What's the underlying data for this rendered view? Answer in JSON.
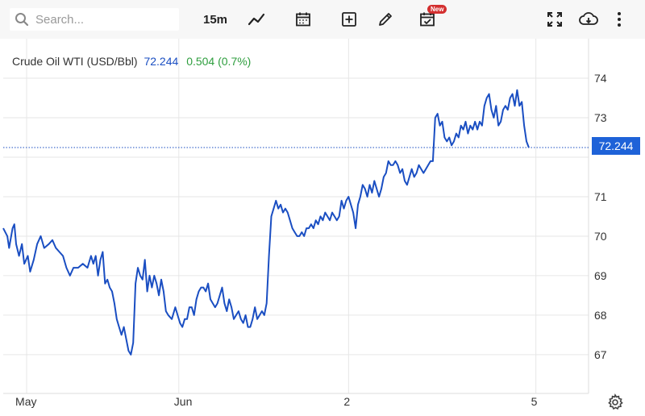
{
  "toolbar": {
    "search_placeholder": "Search...",
    "interval": "15m",
    "new_badge": "New",
    "icons": [
      "search-icon",
      "line-chart-icon",
      "calendar-icon",
      "add-icon",
      "pencil-icon",
      "calendar-check-icon",
      "fullscreen-icon",
      "download-icon",
      "more-icon"
    ]
  },
  "legend": {
    "name": "Crude Oil WTI (USD/Bbl)",
    "price": "72.244",
    "change": "0.504 (0.7%)"
  },
  "colors": {
    "line": "#1a4ec2",
    "up": "#2e9e3e",
    "price_tag": "#1e62d8"
  },
  "chart_data": {
    "type": "line",
    "title": "Crude Oil WTI (USD/Bbl)",
    "last_value": 72.244,
    "y_ticks": [
      67,
      68,
      69,
      70,
      71,
      72,
      73,
      74
    ],
    "y_tick_labels": [
      "67",
      "68",
      "69",
      "70",
      "71",
      "72.244",
      "73",
      "74"
    ],
    "x_tick_labels": [
      "May",
      "Jun",
      "2",
      "5"
    ],
    "x_tick_positions": [
      4,
      30,
      59,
      91
    ],
    "ylim": [
      66.1,
      75.0
    ],
    "xlim": [
      0,
      100
    ],
    "grid": true,
    "series": [
      {
        "values": [
          [
            0,
            70.2
          ],
          [
            0.7,
            70.0
          ],
          [
            1,
            69.7
          ],
          [
            1.6,
            70.2
          ],
          [
            1.9,
            70.3
          ],
          [
            2.2,
            69.8
          ],
          [
            2.7,
            69.5
          ],
          [
            3.2,
            69.8
          ],
          [
            3.6,
            69.3
          ],
          [
            4.2,
            69.5
          ],
          [
            4.6,
            69.1
          ],
          [
            5.2,
            69.4
          ],
          [
            5.8,
            69.8
          ],
          [
            6.4,
            70.0
          ],
          [
            7.0,
            69.7
          ],
          [
            7.8,
            69.8
          ],
          [
            8.4,
            69.9
          ],
          [
            9.0,
            69.7
          ],
          [
            9.6,
            69.6
          ],
          [
            10.2,
            69.5
          ],
          [
            10.8,
            69.2
          ],
          [
            11.4,
            69.0
          ],
          [
            12.0,
            69.2
          ],
          [
            12.8,
            69.2
          ],
          [
            13.6,
            69.3
          ],
          [
            14.4,
            69.2
          ],
          [
            15.0,
            69.5
          ],
          [
            15.4,
            69.3
          ],
          [
            15.8,
            69.5
          ],
          [
            16.2,
            69.0
          ],
          [
            16.6,
            69.4
          ],
          [
            17.0,
            69.6
          ],
          [
            17.4,
            68.8
          ],
          [
            17.8,
            68.9
          ],
          [
            18.2,
            68.7
          ],
          [
            18.6,
            68.6
          ],
          [
            19.0,
            68.3
          ],
          [
            19.4,
            67.9
          ],
          [
            19.8,
            67.7
          ],
          [
            20.2,
            67.5
          ],
          [
            20.6,
            67.7
          ],
          [
            21.0,
            67.4
          ],
          [
            21.4,
            67.1
          ],
          [
            21.8,
            67.0
          ],
          [
            22.2,
            67.3
          ],
          [
            22.6,
            68.8
          ],
          [
            23.0,
            69.2
          ],
          [
            23.4,
            69.0
          ],
          [
            23.8,
            68.9
          ],
          [
            24.2,
            69.4
          ],
          [
            24.6,
            68.6
          ],
          [
            25.0,
            69.0
          ],
          [
            25.4,
            68.7
          ],
          [
            25.8,
            69.0
          ],
          [
            26.2,
            68.8
          ],
          [
            26.6,
            68.5
          ],
          [
            27.0,
            68.9
          ],
          [
            27.4,
            68.6
          ],
          [
            27.8,
            68.1
          ],
          [
            28.2,
            68.0
          ],
          [
            28.8,
            67.9
          ],
          [
            29.4,
            68.2
          ],
          [
            29.8,
            68.0
          ],
          [
            30.2,
            67.8
          ],
          [
            30.6,
            67.7
          ],
          [
            31.0,
            67.9
          ],
          [
            31.4,
            67.9
          ],
          [
            31.8,
            68.2
          ],
          [
            32.2,
            68.2
          ],
          [
            32.6,
            68.0
          ],
          [
            33.0,
            68.4
          ],
          [
            33.4,
            68.6
          ],
          [
            33.8,
            68.7
          ],
          [
            34.2,
            68.7
          ],
          [
            34.6,
            68.6
          ],
          [
            35.0,
            68.8
          ],
          [
            35.4,
            68.4
          ],
          [
            35.8,
            68.3
          ],
          [
            36.2,
            68.2
          ],
          [
            36.6,
            68.3
          ],
          [
            37.0,
            68.5
          ],
          [
            37.4,
            68.7
          ],
          [
            37.8,
            68.3
          ],
          [
            38.2,
            68.1
          ],
          [
            38.6,
            68.4
          ],
          [
            39.0,
            68.2
          ],
          [
            39.4,
            67.9
          ],
          [
            39.8,
            68.0
          ],
          [
            40.2,
            68.1
          ],
          [
            40.6,
            67.9
          ],
          [
            41.0,
            67.8
          ],
          [
            41.4,
            68.0
          ],
          [
            41.8,
            67.7
          ],
          [
            42.2,
            67.7
          ],
          [
            42.6,
            67.9
          ],
          [
            43.0,
            68.2
          ],
          [
            43.4,
            67.9
          ],
          [
            43.8,
            68.0
          ],
          [
            44.2,
            68.1
          ],
          [
            44.6,
            68.0
          ],
          [
            45.0,
            68.3
          ],
          [
            45.4,
            69.5
          ],
          [
            45.8,
            70.5
          ],
          [
            46.2,
            70.7
          ],
          [
            46.6,
            70.9
          ],
          [
            47.0,
            70.7
          ],
          [
            47.4,
            70.8
          ],
          [
            47.8,
            70.6
          ],
          [
            48.2,
            70.7
          ],
          [
            48.6,
            70.6
          ],
          [
            49.0,
            70.4
          ],
          [
            49.4,
            70.2
          ],
          [
            49.8,
            70.1
          ],
          [
            50.2,
            70.0
          ],
          [
            50.6,
            70.0
          ],
          [
            51.0,
            70.1
          ],
          [
            51.4,
            70.0
          ],
          [
            51.8,
            70.2
          ],
          [
            52.2,
            70.2
          ],
          [
            52.6,
            70.3
          ],
          [
            53.0,
            70.2
          ],
          [
            53.4,
            70.4
          ],
          [
            53.8,
            70.3
          ],
          [
            54.2,
            70.5
          ],
          [
            54.6,
            70.4
          ],
          [
            55.0,
            70.6
          ],
          [
            55.4,
            70.5
          ],
          [
            55.8,
            70.4
          ],
          [
            56.2,
            70.6
          ],
          [
            56.6,
            70.5
          ],
          [
            57.0,
            70.4
          ],
          [
            57.4,
            70.5
          ],
          [
            57.8,
            70.9
          ],
          [
            58.2,
            70.7
          ],
          [
            58.6,
            70.9
          ],
          [
            59.0,
            71.0
          ],
          [
            59.4,
            70.8
          ],
          [
            59.8,
            70.6
          ],
          [
            60.2,
            70.2
          ],
          [
            60.6,
            70.8
          ],
          [
            61.0,
            71.0
          ],
          [
            61.4,
            71.3
          ],
          [
            61.8,
            71.2
          ],
          [
            62.2,
            71.0
          ],
          [
            62.6,
            71.3
          ],
          [
            63.0,
            71.1
          ],
          [
            63.4,
            71.4
          ],
          [
            63.8,
            71.2
          ],
          [
            64.2,
            71.0
          ],
          [
            64.6,
            71.2
          ],
          [
            65.0,
            71.5
          ],
          [
            65.4,
            71.6
          ],
          [
            65.8,
            71.9
          ],
          [
            66.2,
            71.8
          ],
          [
            66.6,
            71.8
          ],
          [
            67.0,
            71.9
          ],
          [
            67.4,
            71.8
          ],
          [
            67.8,
            71.6
          ],
          [
            68.2,
            71.7
          ],
          [
            68.6,
            71.4
          ],
          [
            69.0,
            71.3
          ],
          [
            69.4,
            71.5
          ],
          [
            69.8,
            71.7
          ],
          [
            70.2,
            71.5
          ],
          [
            70.6,
            71.6
          ],
          [
            71.0,
            71.8
          ],
          [
            71.4,
            71.7
          ],
          [
            71.8,
            71.6
          ],
          [
            72.2,
            71.7
          ],
          [
            72.6,
            71.8
          ],
          [
            73.0,
            71.9
          ],
          [
            73.4,
            71.9
          ],
          [
            73.8,
            73.0
          ],
          [
            74.2,
            73.1
          ],
          [
            74.6,
            72.8
          ],
          [
            75.0,
            72.9
          ],
          [
            75.4,
            72.5
          ],
          [
            75.8,
            72.4
          ],
          [
            76.2,
            72.5
          ],
          [
            76.6,
            72.3
          ],
          [
            77.0,
            72.4
          ],
          [
            77.4,
            72.6
          ],
          [
            77.8,
            72.5
          ],
          [
            78.2,
            72.8
          ],
          [
            78.6,
            72.7
          ],
          [
            79.0,
            72.9
          ],
          [
            79.4,
            72.6
          ],
          [
            79.8,
            72.8
          ],
          [
            80.2,
            72.7
          ],
          [
            80.6,
            72.9
          ],
          [
            81.0,
            72.7
          ],
          [
            81.4,
            72.9
          ],
          [
            81.8,
            72.8
          ],
          [
            82.2,
            73.3
          ],
          [
            82.6,
            73.5
          ],
          [
            83.0,
            73.6
          ],
          [
            83.4,
            73.2
          ],
          [
            83.8,
            73.0
          ],
          [
            84.2,
            73.3
          ],
          [
            84.6,
            72.8
          ],
          [
            85.0,
            72.9
          ],
          [
            85.4,
            73.2
          ],
          [
            85.8,
            73.3
          ],
          [
            86.2,
            73.2
          ],
          [
            86.6,
            73.5
          ],
          [
            87.0,
            73.6
          ],
          [
            87.4,
            73.3
          ],
          [
            87.8,
            73.7
          ],
          [
            88.2,
            73.3
          ],
          [
            88.6,
            73.4
          ],
          [
            89.0,
            72.8
          ],
          [
            89.4,
            72.4
          ],
          [
            89.8,
            72.244
          ]
        ]
      }
    ]
  }
}
